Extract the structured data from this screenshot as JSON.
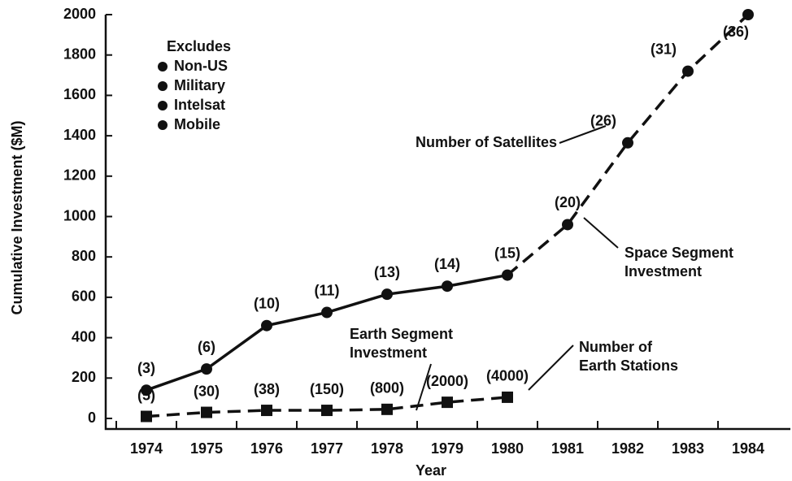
{
  "chart_data": {
    "type": "line",
    "y_label": "Cumulative Investment ($M)",
    "x_label": "Year",
    "categories": [
      "1974",
      "1975",
      "1976",
      "1977",
      "1978",
      "1979",
      "1980",
      "1981",
      "1982",
      "1983",
      "1984"
    ],
    "ylim": [
      0,
      2000
    ],
    "yticks": [
      0,
      200,
      400,
      600,
      800,
      1000,
      1200,
      1400,
      1600,
      1800,
      2000
    ],
    "series": [
      {
        "color": "#111111",
        "marker": "circle",
        "dashed_after": "1980",
        "values": [
          140,
          245,
          460,
          525,
          615,
          655,
          710,
          960,
          1365,
          1720,
          2000
        ],
        "value_labels": [
          "(3)",
          "(6)",
          "(10)",
          "(11)",
          "(13)",
          "(14)",
          "(15)",
          "(20)",
          "(26)",
          "(31)",
          "(36)"
        ]
      },
      {
        "color": "#111111",
        "marker": "square",
        "dashed_after": "1974",
        "values": [
          10,
          30,
          40,
          40,
          45,
          80,
          105,
          null,
          null,
          null,
          null
        ],
        "value_labels": [
          "(5)",
          "(30)",
          "(38)",
          "(150)",
          "(800)",
          "(2000)",
          "(4000)",
          null,
          null,
          null,
          null
        ]
      }
    ],
    "legend": {
      "title": "Excludes",
      "items": [
        "Non-US",
        "Military",
        "Intelsat",
        "Mobile"
      ]
    },
    "annotations": [
      {
        "lines": [
          "Number of Satellites"
        ]
      },
      {
        "lines": [
          "Space Segment",
          "Investment"
        ]
      },
      {
        "lines": [
          "Earth Segment",
          "Investment"
        ]
      },
      {
        "lines": [
          "Number of",
          "Earth Stations"
        ]
      }
    ]
  }
}
